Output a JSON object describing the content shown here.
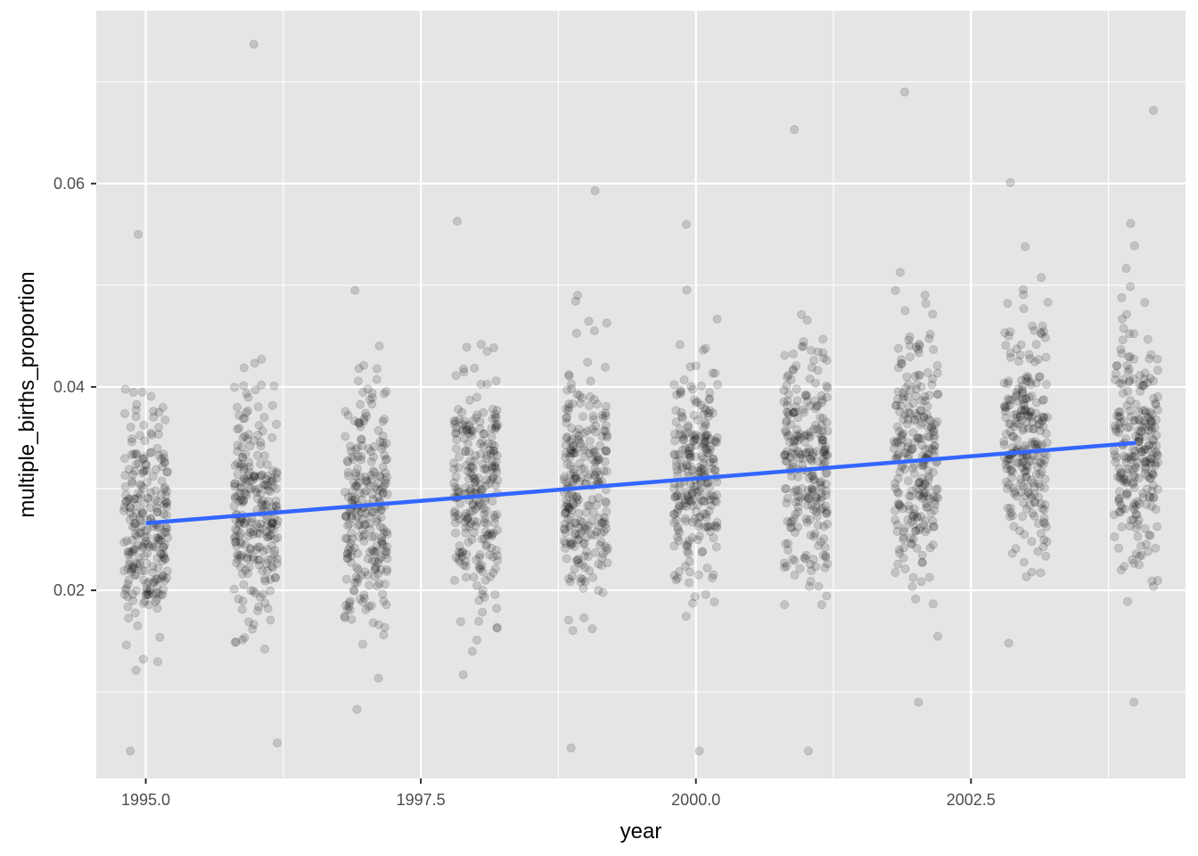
{
  "chart_data": {
    "type": "scatter",
    "title": "",
    "xlabel": "year",
    "ylabel": "multiple_births_proportion",
    "xlim": [
      1994.55,
      2004.45
    ],
    "ylim": [
      0.0015,
      0.077
    ],
    "x_ticks": [
      1995.0,
      1997.5,
      2000.0,
      2002.5
    ],
    "x_tick_labels": [
      "1995.0",
      "1997.5",
      "2000.0",
      "2002.5"
    ],
    "y_ticks": [
      0.02,
      0.04,
      0.06
    ],
    "y_tick_labels": [
      "0.02",
      "0.04",
      "0.06"
    ],
    "grid": true,
    "panel_background": "#e5e5e5",
    "grid_color": "#ffffff",
    "point_color": "#000000",
    "point_opacity": 0.15,
    "jitter_width": 0.2,
    "points_per_year": 250,
    "series": [
      {
        "year": 1995,
        "center": 0.0265,
        "sd": 0.0055,
        "min": 0.0042,
        "max": 0.055
      },
      {
        "year": 1996,
        "center": 0.0275,
        "sd": 0.0055,
        "min": 0.005,
        "max": 0.0737
      },
      {
        "year": 1997,
        "center": 0.0284,
        "sd": 0.006,
        "min": 0.0083,
        "max": 0.0495
      },
      {
        "year": 1998,
        "center": 0.0294,
        "sd": 0.0058,
        "min": 0.0117,
        "max": 0.0563
      },
      {
        "year": 1999,
        "center": 0.0304,
        "sd": 0.0058,
        "min": 0.0045,
        "max": 0.0593
      },
      {
        "year": 2000,
        "center": 0.0314,
        "sd": 0.0058,
        "min": 0.0042,
        "max": 0.056
      },
      {
        "year": 2001,
        "center": 0.0323,
        "sd": 0.0062,
        "min": 0.0042,
        "max": 0.0653
      },
      {
        "year": 2002,
        "center": 0.0333,
        "sd": 0.0065,
        "min": 0.009,
        "max": 0.069
      },
      {
        "year": 2003,
        "center": 0.0342,
        "sd": 0.006,
        "min": 0.0148,
        "max": 0.0601
      },
      {
        "year": 2004,
        "center": 0.0345,
        "sd": 0.0062,
        "min": 0.009,
        "max": 0.0672
      }
    ],
    "trend_line": {
      "color": "#3366ff",
      "x": [
        1995,
        2004
      ],
      "y": [
        0.0266,
        0.0345
      ]
    }
  }
}
